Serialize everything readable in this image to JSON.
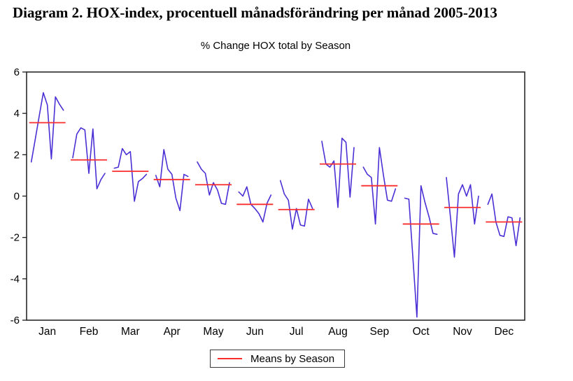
{
  "page": {
    "title": "Diagram 2. HOX-index, procentuell månadsförändring per månad 2005-2013"
  },
  "chart_data": {
    "type": "line",
    "title": "% Change HOX total by Season",
    "legend": [
      "Means by Season"
    ],
    "legend_position": "bottom-center",
    "grid": "off",
    "ylim": [
      -6,
      6
    ],
    "y_ticks": [
      -6,
      -4,
      -2,
      0,
      2,
      4,
      6
    ],
    "categories": [
      "Jan",
      "Feb",
      "Mar",
      "Apr",
      "May",
      "Jun",
      "Jul",
      "Aug",
      "Sep",
      "Oct",
      "Nov",
      "Dec"
    ],
    "line_color": "#4a30d5",
    "mean_color": "#f92c2c",
    "months": [
      {
        "label": "Jan",
        "values": [
          1.65,
          2.75,
          3.9,
          5.0,
          4.4,
          1.8,
          4.8,
          4.45,
          4.15
        ],
        "mean": 3.55
      },
      {
        "label": "Feb",
        "values": [
          1.85,
          3.0,
          3.3,
          3.2,
          1.1,
          3.25,
          0.35,
          0.8,
          1.1
        ],
        "mean": 1.75
      },
      {
        "label": "Mar",
        "values": [
          1.35,
          1.4,
          2.3,
          2.0,
          2.15,
          -0.25,
          0.7,
          0.85,
          1.05
        ],
        "mean": 1.2
      },
      {
        "label": "Apr",
        "values": [
          1.0,
          0.45,
          2.25,
          1.3,
          1.05,
          -0.1,
          -0.7,
          1.05,
          0.95
        ],
        "mean": 0.8
      },
      {
        "label": "May",
        "values": [
          1.65,
          1.3,
          1.1,
          0.05,
          0.65,
          0.3,
          -0.35,
          -0.4,
          0.65
        ],
        "mean": 0.55
      },
      {
        "label": "Jun",
        "values": [
          0.2,
          0.0,
          0.45,
          -0.4,
          -0.6,
          -0.85,
          -1.25,
          -0.35,
          0.05
        ],
        "mean": -0.4
      },
      {
        "label": "Jul",
        "values": [
          0.75,
          0.1,
          -0.2,
          -1.6,
          -0.6,
          -1.4,
          -1.45,
          -0.15,
          -0.6
        ],
        "mean": -0.65
      },
      {
        "label": "Aug",
        "values": [
          2.65,
          1.55,
          1.4,
          1.7,
          -0.55,
          2.8,
          2.6,
          -0.05,
          2.35
        ],
        "mean": 1.55
      },
      {
        "label": "Sep",
        "values": [
          1.4,
          1.05,
          0.9,
          -1.35,
          2.35,
          1.0,
          -0.2,
          -0.25,
          0.35
        ],
        "mean": 0.5
      },
      {
        "label": "Oct",
        "values": [
          -0.1,
          -0.15,
          -3.0,
          -5.85,
          0.5,
          -0.3,
          -1.0,
          -1.8,
          -1.85
        ],
        "mean": -1.35
      },
      {
        "label": "Nov",
        "values": [
          0.9,
          -1.0,
          -2.95,
          0.1,
          0.55,
          0.0,
          0.55,
          -1.35,
          0.0
        ],
        "mean": -0.55
      },
      {
        "label": "Dec",
        "values": [
          -0.4,
          0.1,
          -1.25,
          -1.9,
          -1.95,
          -1.0,
          -1.05,
          -2.4,
          -1.05
        ],
        "mean": -1.25
      }
    ]
  }
}
